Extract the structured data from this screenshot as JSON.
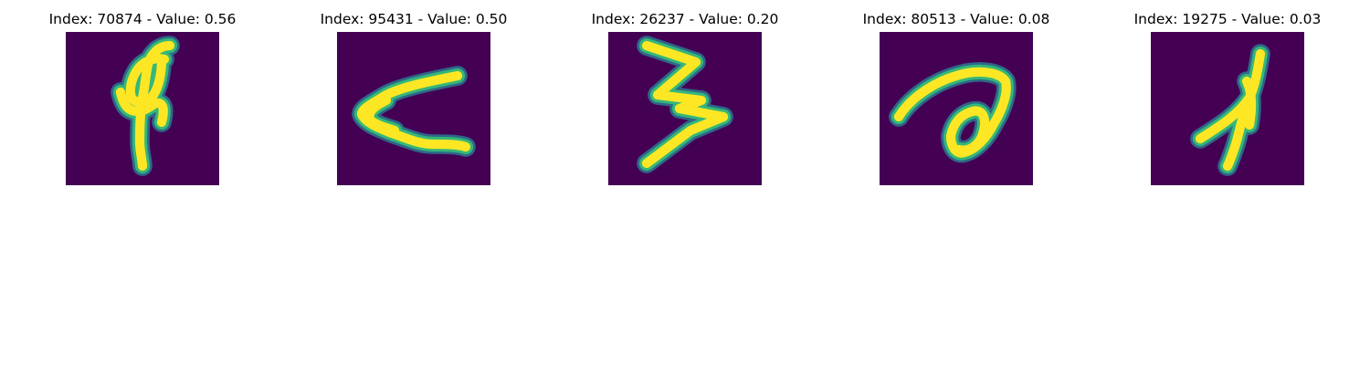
{
  "colors": {
    "background": "#440154",
    "core": "#fde725",
    "edge": "#35b779",
    "halo": "#2c728e"
  },
  "panels": [
    {
      "title": "Index: 70874 - Value: 0.56"
    },
    {
      "title": "Index: 95431 - Value: 0.50"
    },
    {
      "title": "Index: 26237 - Value: 0.20"
    },
    {
      "title": "Index: 80513 - Value: 0.08"
    },
    {
      "title": "Index: 19275 - Value: 0.03"
    }
  ]
}
